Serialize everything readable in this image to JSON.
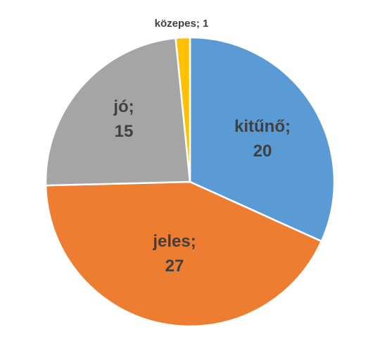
{
  "chart_data": {
    "type": "pie",
    "title": "",
    "legend": "none",
    "start_angle_deg": 0,
    "direction": "clockwise",
    "slices": [
      {
        "label": "kitűnő",
        "value": 20,
        "color": "#5B9BD5",
        "label_line1": "kitűnő;",
        "label_line2": "20"
      },
      {
        "label": "jeles",
        "value": 27,
        "color": "#ED7D31",
        "label_line1": "jeles;",
        "label_line2": "27"
      },
      {
        "label": "jó",
        "value": 15,
        "color": "#A5A5A5",
        "label_line1": "jó;",
        "label_line2": "15"
      },
      {
        "label": "közepes",
        "value": 1,
        "color": "#FFC000",
        "label_line1": "közepes; 1",
        "label_line2": ""
      }
    ]
  }
}
